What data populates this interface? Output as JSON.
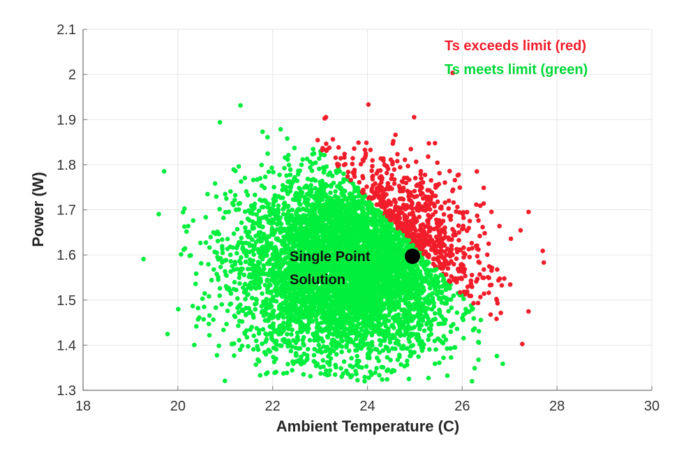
{
  "chart_data": {
    "type": "scatter",
    "title": "",
    "xlabel": "Ambient Temperature (C)",
    "ylabel": "Power (W)",
    "xlim": [
      18,
      30
    ],
    "ylim": [
      1.3,
      2.1
    ],
    "xticks": [
      "18",
      "20",
      "22",
      "24",
      "26",
      "28",
      "30"
    ],
    "yticks": [
      "1.3",
      "1.4",
      "1.5",
      "1.6",
      "1.7",
      "1.8",
      "1.9",
      "2",
      "2.1"
    ],
    "grid": true,
    "legend_entries": [
      {
        "label": "Ts exceeds limit (red)",
        "color": "#f21d2a"
      },
      {
        "label": "Ts meets limit (green)",
        "color": "#00ee3c"
      }
    ],
    "legend_placement": "top-right",
    "cloud": {
      "count": 6000,
      "x_mean": 23.6,
      "x_sd": 1.15,
      "y_mean": 1.575,
      "y_sd": 0.1,
      "limit_boundary": {
        "x1": 23.0,
        "y1": 1.835,
        "x2": 25.6,
        "y2": 1.555
      }
    },
    "highlight_point": {
      "x": 24.95,
      "y": 1.597,
      "label_lines": [
        "Single Point",
        "Solution"
      ],
      "color": "#000000"
    }
  }
}
